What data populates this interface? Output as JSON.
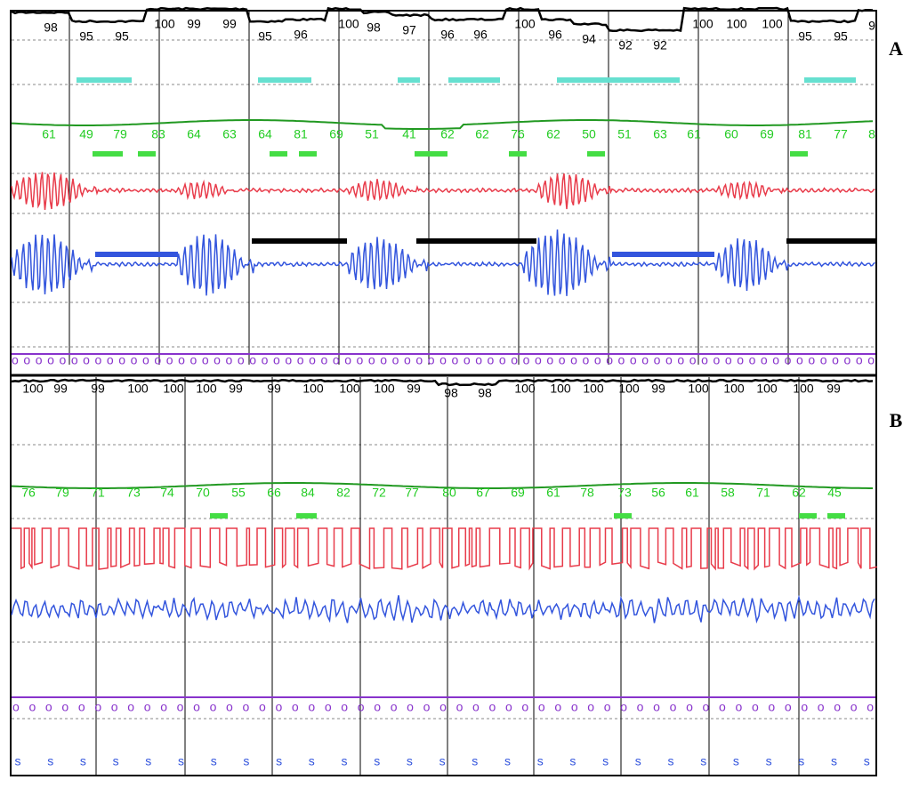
{
  "panels": [
    {
      "label": "A",
      "spo2": [
        "98",
        "95",
        "95",
        "100",
        "99",
        "99",
        "95",
        "96",
        "100",
        "98",
        "97",
        "96",
        "96",
        "100",
        "96",
        "94",
        "92",
        "92",
        "100",
        "100",
        "100",
        "95",
        "95",
        "9"
      ],
      "hr": [
        "61",
        "49",
        "79",
        "83",
        "64",
        "63",
        "64",
        "81",
        "69",
        "51",
        "41",
        "62",
        "62",
        "76",
        "62",
        "50",
        "51",
        "63",
        "61",
        "60",
        "69",
        "81",
        "77",
        "8"
      ],
      "o_row": "ooooooooooooooooooooooooooooooooooooooooooooooooooooooooooooooooooooooooo"
    },
    {
      "label": "B",
      "spo2": [
        "100",
        "99",
        "99",
        "100",
        "100",
        "100",
        "99",
        "99",
        "100",
        "100",
        "100",
        "99",
        "98",
        "98",
        "100",
        "100",
        "100",
        "100",
        "99",
        "100",
        "100",
        "100",
        "100",
        "99"
      ],
      "hr": [
        "76",
        "79",
        "71",
        "73",
        "74",
        "70",
        "55",
        "66",
        "84",
        "82",
        "72",
        "77",
        "80",
        "67",
        "69",
        "61",
        "78",
        "73",
        "56",
        "61",
        "58",
        "71",
        "62",
        "45"
      ],
      "o_row": "ooooooooooooooooooooooooooooooooooooooooooooooooooooo",
      "s_row": [
        "s",
        "s",
        "s",
        "s",
        "s",
        "s",
        "s",
        "s",
        "s",
        "s",
        "s",
        "s",
        "s",
        "s",
        "s",
        "s",
        "s",
        "s",
        "s",
        "s",
        "s",
        "s",
        "s",
        "s",
        "s",
        "s",
        "s"
      ]
    }
  ]
}
